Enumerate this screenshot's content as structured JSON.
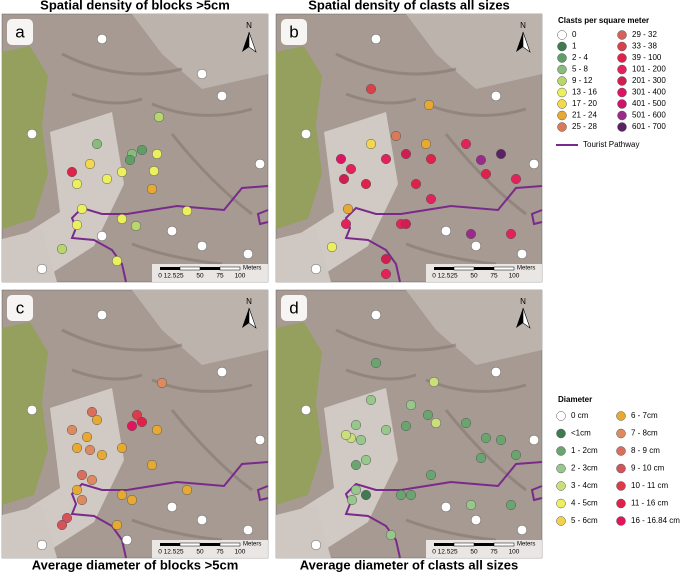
{
  "north": "N",
  "panels": [
    {
      "letter": "a",
      "title": "Spatial density of blocks >5cm"
    },
    {
      "letter": "b",
      "title": "Spatial density of clasts all sizes"
    },
    {
      "letter": "c",
      "title": "Average diameter of blocks >5cm"
    },
    {
      "letter": "d",
      "title": "Average diameter of clasts all sizes"
    }
  ],
  "scale_bar": {
    "ticks": [
      "0",
      "12.5",
      "25",
      "50",
      "75",
      "100"
    ],
    "unit": "Meters"
  },
  "legend_density": {
    "title": "Clasts per square meter",
    "items": [
      {
        "label": "0",
        "color": "#ffffff"
      },
      {
        "label": "1",
        "color": "#3f7a52"
      },
      {
        "label": "2 - 4",
        "color": "#5f9f66"
      },
      {
        "label": "5 - 8",
        "color": "#88bc7c"
      },
      {
        "label": "9 - 12",
        "color": "#b7d66c"
      },
      {
        "label": "13 - 16",
        "color": "#ecef5e"
      },
      {
        "label": "17 - 20",
        "color": "#f4d74c"
      },
      {
        "label": "21 - 24",
        "color": "#e8a932"
      },
      {
        "label": "25 - 28",
        "color": "#da7a5b"
      },
      {
        "label": "29 - 32",
        "color": "#d4625a"
      },
      {
        "label": "33 - 38",
        "color": "#d9424b"
      },
      {
        "label": "39 - 100",
        "color": "#e0224a"
      },
      {
        "label": "101 - 200",
        "color": "#e3215a"
      },
      {
        "label": "201 - 300",
        "color": "#d21d52"
      },
      {
        "label": "301 - 400",
        "color": "#e01262"
      },
      {
        "label": "401 - 500",
        "color": "#cf126c"
      },
      {
        "label": "501 - 600",
        "color": "#9b2b8b"
      },
      {
        "label": "601 - 700",
        "color": "#5b2262"
      }
    ]
  },
  "pathway_label": "Tourist Pathway",
  "pathway_color": "#7a2a8a",
  "legend_diameter": {
    "title": "Diameter",
    "items": [
      {
        "label": "0 cm",
        "color": "#ffffff"
      },
      {
        "label": "<1cm",
        "color": "#3f7a52"
      },
      {
        "label": "1 - 2cm",
        "color": "#6aa570"
      },
      {
        "label": "2 - 3cm",
        "color": "#98c78b"
      },
      {
        "label": "3 - 4cm",
        "color": "#c9e07a"
      },
      {
        "label": "4 - 5cm",
        "color": "#ecef5e"
      },
      {
        "label": "5 - 6cm",
        "color": "#f1d24a"
      },
      {
        "label": "6 - 7cm",
        "color": "#e8a932"
      },
      {
        "label": "7 - 8cm",
        "color": "#dc8a5e"
      },
      {
        "label": "8 - 9 cm",
        "color": "#d96e5c"
      },
      {
        "label": "9 - 10 cm",
        "color": "#d4525a"
      },
      {
        "label": "10 -  11 cm",
        "color": "#dd3a4a"
      },
      {
        "label": "11 - 16 cm",
        "color": "#e0224a"
      },
      {
        "label": "16 - 16.84 cm",
        "color": "#e3145c"
      }
    ]
  }
}
